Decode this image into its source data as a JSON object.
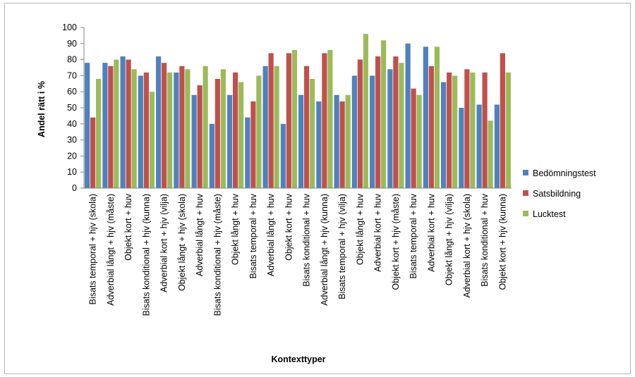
{
  "chart_data": {
    "type": "bar",
    "title": "",
    "xlabel": "Kontexttyper",
    "ylabel": "Andel rätt i %",
    "ylim": [
      0,
      100
    ],
    "yticks": [
      0,
      10,
      20,
      30,
      40,
      50,
      60,
      70,
      80,
      90,
      100
    ],
    "grid": false,
    "legend_position": "right",
    "categories": [
      "Bisats temporal + hjv (skola)",
      "Adverbial långt + hjv (måste)",
      "Objekt kort + huv",
      "Bisats konditional + hjv (kunna)",
      "Adverbial kort + hjv (vilja)",
      "Objekt långt + hjv (skola)",
      "Adverbial långt + huv",
      "Bisats konditional + hjv (måste)",
      "Objekt långt + huv",
      "Bisats temporal + huv",
      "Adverbial långt + huv",
      "Objekt kort + huv",
      "Bisats konditional + huv",
      "Adverbial långt + hjv (kunna)",
      "Bisats temporal + hjv (vilja)",
      "Objekt långt + huv",
      "Adverbial kort + huv",
      "Objekt kort + hjv (måste)",
      "Bisats temporal + huv",
      "Adverbial kort + huv",
      "Objekt långt + hjv (vilja)",
      "Adverbial kort + hjv (skola)",
      "Bisats konditional + huv",
      "Objekt kort + hjv (kunna)"
    ],
    "series": [
      {
        "name": "Bedömningstest",
        "color": "#4f81bd",
        "values": [
          78,
          78,
          82,
          70,
          82,
          72,
          58,
          40,
          58,
          44,
          76,
          40,
          58,
          54,
          58,
          70,
          70,
          74,
          90,
          88,
          66,
          50,
          52,
          52
        ]
      },
      {
        "name": "Satsbildning",
        "color": "#c0504d",
        "values": [
          44,
          76,
          80,
          72,
          78,
          76,
          64,
          68,
          72,
          54,
          84,
          84,
          76,
          84,
          54,
          80,
          82,
          82,
          62,
          76,
          72,
          74,
          72,
          84
        ]
      },
      {
        "name": "Lucktest",
        "color": "#9bbb59",
        "values": [
          68,
          80,
          74,
          60,
          72,
          74,
          76,
          74,
          66,
          70,
          76,
          86,
          68,
          86,
          58,
          96,
          92,
          78,
          58,
          88,
          70,
          72,
          42,
          72
        ]
      }
    ]
  }
}
